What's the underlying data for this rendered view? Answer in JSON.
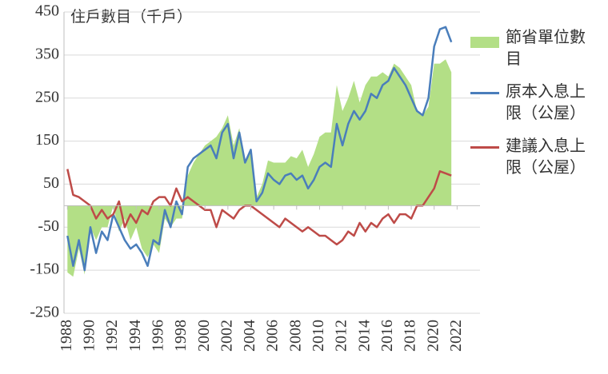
{
  "chart_data": {
    "type": "line",
    "title": "住戶數目（千戶）",
    "x": [
      1988,
      1988.5,
      1989,
      1989.5,
      1990,
      1990.5,
      1991,
      1991.5,
      1992,
      1992.5,
      1993,
      1993.5,
      1994,
      1994.5,
      1995,
      1995.5,
      1996,
      1996.5,
      1997,
      1997.5,
      1998,
      1998.5,
      1999,
      1999.5,
      2000,
      2000.5,
      2001,
      2001.5,
      2002,
      2002.5,
      2003,
      2003.5,
      2004,
      2004.5,
      2005,
      2005.5,
      2006,
      2006.5,
      2007,
      2007.5,
      2008,
      2008.5,
      2009,
      2009.5,
      2010,
      2010.5,
      2011,
      2011.5,
      2012,
      2012.5,
      2013,
      2013.5,
      2014,
      2014.5,
      2015,
      2015.5,
      2016,
      2016.5,
      2017,
      2017.5,
      2018,
      2018.5,
      2019,
      2019.5,
      2020,
      2020.5,
      2021,
      2021.5
    ],
    "series": [
      {
        "name": "節省單位數目",
        "color": "#b3df86",
        "style": "area",
        "values": [
          -155,
          -165,
          -100,
          -160,
          -50,
          -80,
          -50,
          -50,
          0,
          -60,
          -30,
          -80,
          -50,
          -100,
          -120,
          -90,
          -110,
          -30,
          -50,
          -30,
          -30,
          70,
          100,
          120,
          140,
          150,
          160,
          180,
          210,
          140,
          180,
          100,
          130,
          20,
          50,
          105,
          100,
          100,
          100,
          115,
          110,
          130,
          90,
          120,
          160,
          170,
          170,
          280,
          220,
          250,
          290,
          240,
          280,
          300,
          300,
          310,
          300,
          330,
          320,
          300,
          280,
          220,
          210,
          230,
          330,
          330,
          340,
          310
        ]
      },
      {
        "name": "原本入息上限（公屋）",
        "color": "#4a7ebb",
        "style": "line",
        "values": [
          -70,
          -140,
          -80,
          -150,
          -50,
          -110,
          -60,
          -80,
          -20,
          -50,
          -80,
          -100,
          -90,
          -110,
          -140,
          -80,
          -90,
          -10,
          -50,
          10,
          -20,
          90,
          110,
          120,
          130,
          140,
          110,
          170,
          190,
          110,
          170,
          100,
          130,
          10,
          30,
          75,
          60,
          50,
          70,
          75,
          60,
          70,
          40,
          60,
          90,
          100,
          90,
          190,
          140,
          190,
          220,
          200,
          220,
          260,
          250,
          280,
          290,
          320,
          300,
          280,
          250,
          220,
          210,
          250,
          370,
          410,
          415,
          380
        ]
      },
      {
        "name": "建議入息上限（公屋）",
        "color": "#be4b48",
        "style": "line",
        "values": [
          85,
          25,
          20,
          10,
          0,
          -30,
          -10,
          -30,
          -20,
          10,
          -50,
          -20,
          -40,
          -10,
          -20,
          10,
          20,
          20,
          0,
          40,
          10,
          20,
          10,
          0,
          -10,
          -10,
          -50,
          -10,
          -20,
          -30,
          -10,
          0,
          0,
          -10,
          -20,
          -30,
          -40,
          -50,
          -30,
          -40,
          -50,
          -60,
          -50,
          -60,
          -70,
          -70,
          -80,
          -90,
          -80,
          -60,
          -70,
          -40,
          -60,
          -40,
          -50,
          -30,
          -20,
          -40,
          -20,
          -20,
          -30,
          0,
          0,
          20,
          40,
          80,
          75,
          70
        ]
      }
    ],
    "xlim": [
      1987.7,
      2024
    ],
    "xticks": [
      1988,
      1990,
      1992,
      1994,
      1996,
      1998,
      2000,
      2002,
      2004,
      2006,
      2008,
      2010,
      2012,
      2014,
      2016,
      2018,
      2020,
      2022
    ],
    "ylim": [
      -250,
      450
    ],
    "yticks": [
      -250,
      -150,
      -50,
      50,
      150,
      250,
      350,
      450
    ],
    "grid": true,
    "legend": "right"
  }
}
